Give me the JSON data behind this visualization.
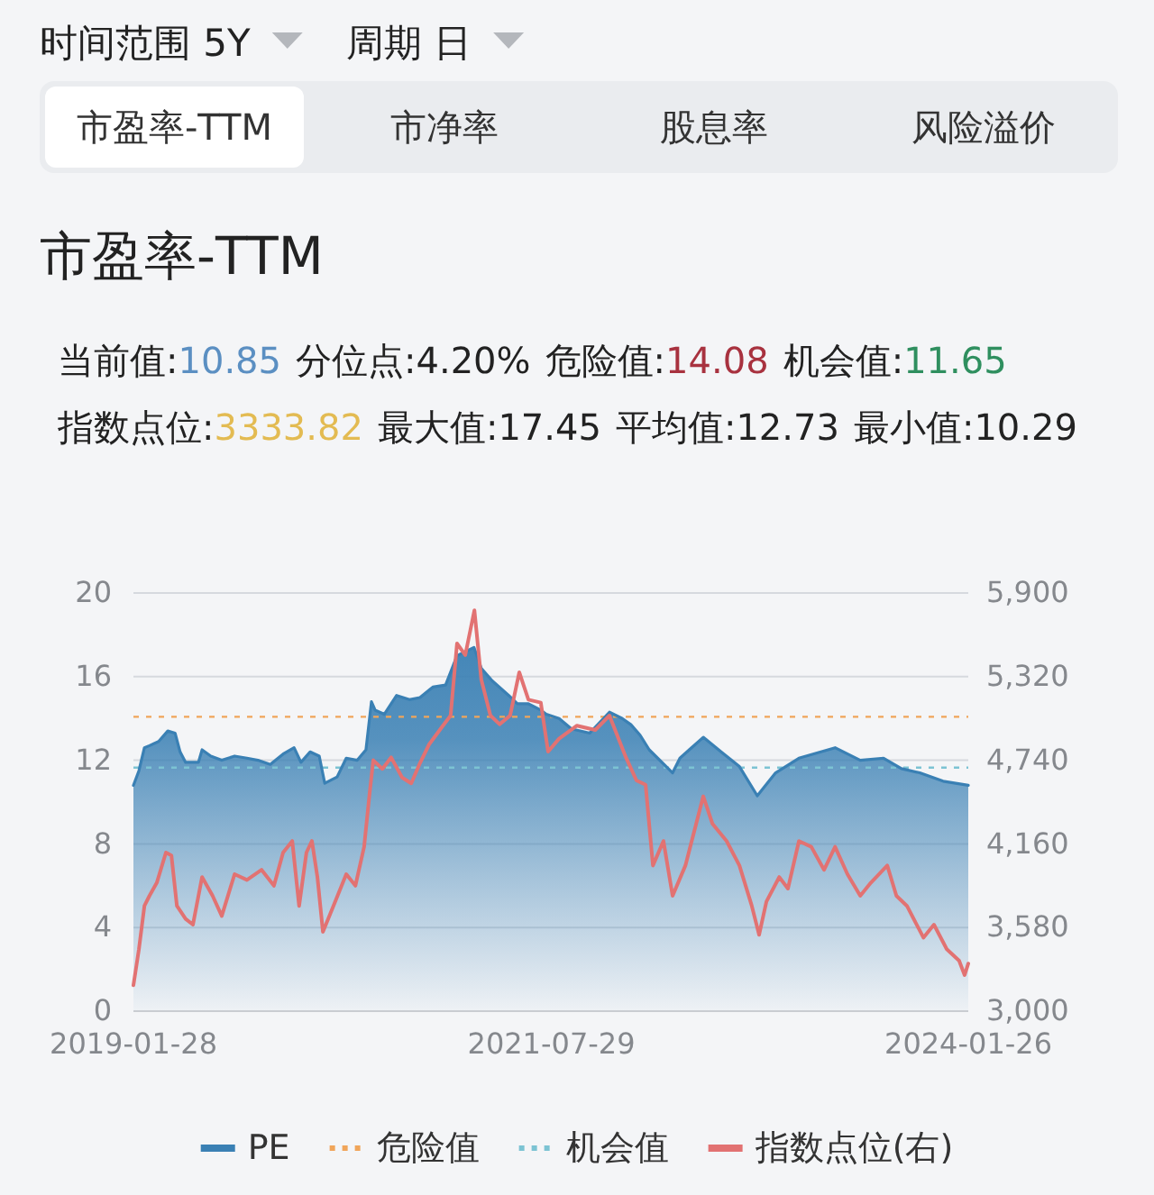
{
  "chart_data": {
    "type": "area",
    "title": "市盈率-TTM",
    "annotations": [
      "时间范围 5Y",
      "周期 日",
      "市盈率-TTM",
      "市净率",
      "股息率",
      "风险溢价",
      "当前值:10.85",
      "分位点:4.20%",
      "危险值:14.08",
      "机会值:11.65",
      "指数点位:3333.82",
      "最大值:17.45",
      "平均值:12.73",
      "最小值:10.29"
    ],
    "xlim": [
      "2019-01-28",
      "2024-01-26"
    ],
    "xticks": [
      "2019-01-28",
      "2021-07-29",
      "2024-01-26"
    ],
    "ylim": [
      0,
      20
    ],
    "yticks": [
      0,
      4,
      8,
      12,
      16,
      20
    ],
    "y2lim": [
      3000,
      5900
    ],
    "y2ticks": [
      {
        "value": 3000,
        "label": "3,000"
      },
      {
        "value": 3580,
        "label": "3,580"
      },
      {
        "value": 4160,
        "label": "4,160"
      },
      {
        "value": 4740,
        "label": "4,740"
      },
      {
        "value": 5320,
        "label": "5,320"
      },
      {
        "value": 5900,
        "label": "5,900"
      }
    ],
    "grid": "y",
    "legend": "bottom",
    "ref_lines": [
      {
        "axis": "y",
        "value": 14.08,
        "label": "危险值",
        "color": "#f0a55a",
        "line_style": "dashed"
      },
      {
        "axis": "y",
        "value": 11.65,
        "label": "机会值",
        "color": "#7cc3d3",
        "line_style": "dashed"
      }
    ],
    "series": [
      {
        "name": "PE",
        "color": "#3a80b4",
        "x": [
          "2019-01-28",
          "2019-02-09",
          "2019-02-21",
          "2019-03-04",
          "2019-03-24",
          "2019-04-13",
          "2019-04-29",
          "2019-05-10",
          "2019-05-22",
          "2019-06-19",
          "2019-06-27",
          "2019-07-16",
          "2019-08-09",
          "2019-09-06",
          "2019-10-03",
          "2019-10-27",
          "2019-11-23",
          "2019-12-21",
          "2020-01-14",
          "2020-01-29",
          "2020-02-18",
          "2020-03-09",
          "2020-03-21",
          "2020-04-17",
          "2020-05-07",
          "2020-05-31",
          "2020-06-19",
          "2020-07-01",
          "2020-07-09",
          "2020-07-29",
          "2020-08-25",
          "2020-09-22",
          "2020-10-15",
          "2020-11-12",
          "2020-12-10",
          "2021-01-04",
          "2021-02-10",
          "2021-02-26",
          "2021-03-22",
          "2021-04-27",
          "2021-05-16",
          "2021-06-09",
          "2021-07-06",
          "2021-07-18",
          "2021-08-15",
          "2021-09-11",
          "2021-10-21",
          "2021-12-03",
          "2021-12-31",
          "2022-01-19",
          "2022-02-08",
          "2022-02-28",
          "2022-04-20",
          "2022-05-06",
          "2022-06-26",
          "2022-08-04",
          "2022-09-13",
          "2022-10-22",
          "2022-12-01",
          "2023-01-21",
          "2023-04-10",
          "2023-06-04",
          "2023-07-25",
          "2023-09-02",
          "2023-10-12",
          "2023-12-02",
          "2024-01-26"
        ],
        "values": [
          10.8,
          11.5,
          12.6,
          12.7,
          12.9,
          13.4,
          13.3,
          12.4,
          11.9,
          11.9,
          12.5,
          12.2,
          12.0,
          12.2,
          12.1,
          12.0,
          11.8,
          12.3,
          12.6,
          11.9,
          12.4,
          12.2,
          10.9,
          11.2,
          12.1,
          12.0,
          12.5,
          14.8,
          14.4,
          14.2,
          15.1,
          14.9,
          15.0,
          15.5,
          15.6,
          17.0,
          17.4,
          16.4,
          15.8,
          15.1,
          14.7,
          14.7,
          14.4,
          14.2,
          14.0,
          13.5,
          13.3,
          14.3,
          14.0,
          13.7,
          13.2,
          12.5,
          11.4,
          12.1,
          13.1,
          12.4,
          11.7,
          10.3,
          11.4,
          12.1,
          12.6,
          12.0,
          12.1,
          11.6,
          11.4,
          11.0,
          10.8
        ]
      },
      {
        "name": "指数点位(右)",
        "type": "line",
        "axis": "y2",
        "color": "#e27272",
        "x": [
          "2019-01-28",
          "2019-02-09",
          "2019-02-21",
          "2019-03-04",
          "2019-03-20",
          "2019-04-09",
          "2019-04-21",
          "2019-05-03",
          "2019-05-22",
          "2019-06-07",
          "2019-06-27",
          "2019-07-20",
          "2019-08-09",
          "2019-09-06",
          "2019-10-03",
          "2019-11-04",
          "2019-12-01",
          "2019-12-21",
          "2020-01-10",
          "2020-01-25",
          "2020-02-10",
          "2020-02-22",
          "2020-03-05",
          "2020-03-17",
          "2020-04-09",
          "2020-05-07",
          "2020-05-27",
          "2020-06-15",
          "2020-06-27",
          "2020-07-05",
          "2020-07-25",
          "2020-08-13",
          "2020-09-06",
          "2020-09-26",
          "2020-10-15",
          "2020-11-04",
          "2020-12-02",
          "2020-12-21",
          "2021-01-04",
          "2021-01-22",
          "2021-02-11",
          "2021-02-26",
          "2021-03-18",
          "2021-04-07",
          "2021-04-30",
          "2021-05-20",
          "2021-06-09",
          "2021-07-06",
          "2021-07-22",
          "2021-08-15",
          "2021-09-23",
          "2021-11-02",
          "2021-12-03",
          "2022-01-08",
          "2022-01-31",
          "2022-02-20",
          "2022-03-08",
          "2022-03-31",
          "2022-04-20",
          "2022-05-18",
          "2022-06-26",
          "2022-07-16",
          "2022-08-16",
          "2022-09-13",
          "2022-10-10",
          "2022-10-26",
          "2022-11-11",
          "2022-12-09",
          "2022-12-28",
          "2023-01-21",
          "2023-02-17",
          "2023-03-17",
          "2023-04-10",
          "2023-05-07",
          "2023-06-04",
          "2023-06-27",
          "2023-08-02",
          "2023-08-22",
          "2023-09-14",
          "2023-10-20",
          "2023-11-12",
          "2023-12-10",
          "2024-01-06",
          "2024-01-18",
          "2024-01-26"
        ],
        "values": [
          3180,
          3430,
          3730,
          3800,
          3890,
          4100,
          4080,
          3730,
          3640,
          3600,
          3930,
          3800,
          3660,
          3950,
          3910,
          3980,
          3870,
          4100,
          4180,
          3730,
          4100,
          4180,
          3930,
          3550,
          3730,
          3950,
          3870,
          4140,
          4510,
          4740,
          4680,
          4760,
          4620,
          4580,
          4720,
          4850,
          4970,
          5050,
          5550,
          5470,
          5780,
          5300,
          5050,
          4990,
          5050,
          5350,
          5160,
          5140,
          4800,
          4890,
          4980,
          4950,
          5050,
          4760,
          4600,
          4570,
          4010,
          4180,
          3800,
          4010,
          4490,
          4300,
          4180,
          4010,
          3730,
          3530,
          3760,
          3930,
          3850,
          4180,
          4140,
          3980,
          4140,
          3950,
          3800,
          3890,
          4010,
          3800,
          3730,
          3510,
          3600,
          3430,
          3350,
          3250,
          3330
        ]
      }
    ]
  }
}
